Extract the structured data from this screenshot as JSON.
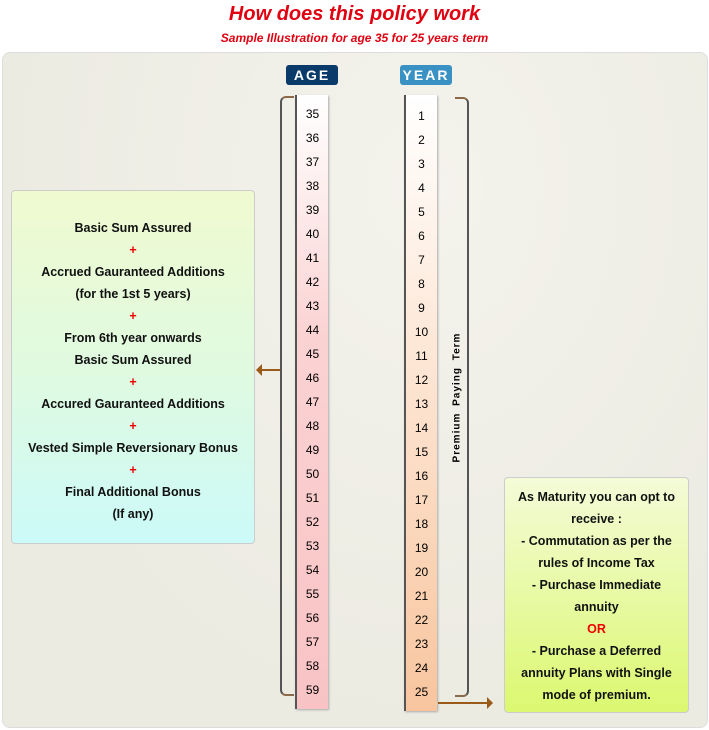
{
  "header": {
    "title": "How does this policy work",
    "subtitle": "Sample Illustration for age 35 for 25 years term"
  },
  "labels": {
    "age": "AGE",
    "year": "YEAR",
    "premium_term": "Premium Paying Term"
  },
  "ages": [
    "35",
    "36",
    "37",
    "38",
    "39",
    "40",
    "41",
    "42",
    "43",
    "44",
    "45",
    "46",
    "47",
    "48",
    "49",
    "50",
    "51",
    "52",
    "53",
    "54",
    "55",
    "56",
    "57",
    "58",
    "59"
  ],
  "years": [
    "1",
    "2",
    "3",
    "4",
    "5",
    "6",
    "7",
    "8",
    "9",
    "10",
    "11",
    "12",
    "13",
    "14",
    "15",
    "16",
    "17",
    "18",
    "19",
    "20",
    "21",
    "22",
    "23",
    "24",
    "25"
  ],
  "benefit_lines": [
    "Basic Sum Assured",
    "+",
    "Accrued Gauranteed Additions",
    "(for the 1st 5 years)",
    "+",
    "From 6th year onwards",
    "Basic Sum Assured",
    "+",
    "Accured Gauranteed Additions",
    "+",
    "Vested Simple Reversionary Bonus",
    "+",
    "Final Additional Bonus",
    "(If any)"
  ],
  "maturity_lines": [
    "As Maturity you can opt to",
    "receive :",
    "- Commutation as per the",
    "rules of Income Tax",
    "- Purchase Immediate",
    "annuity",
    "OR",
    "- Purchase a Deferred",
    "annuity Plans with Single",
    "mode of premium."
  ],
  "colors": {
    "title": "#e00010",
    "age_badge": "#0a3a6a",
    "year_badge": "#3a92c4",
    "arrow": "#9a5a1a"
  }
}
